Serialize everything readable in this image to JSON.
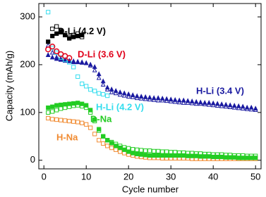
{
  "chart_data": {
    "type": "scatter",
    "xlabel": "Cycle number",
    "ylabel": "Capacity (mAh/g)",
    "xlim": [
      -1.2,
      51.3
    ],
    "ylim": [
      -18,
      328
    ],
    "xticks": [
      0,
      10,
      20,
      30,
      40,
      50
    ],
    "yticks": [
      0,
      100,
      200,
      300
    ],
    "series": [
      {
        "color": "#1a1aa0",
        "marker": "triangle",
        "filled": true,
        "x": [
          1,
          2,
          3,
          4,
          5,
          6,
          7,
          8,
          9,
          10,
          11,
          12,
          13,
          14,
          15,
          16,
          17,
          18,
          19,
          20,
          21,
          22,
          23,
          24,
          25,
          26,
          27,
          28,
          29,
          30,
          31,
          32,
          33,
          34,
          35,
          36,
          37,
          38,
          39,
          40,
          41,
          42,
          43,
          44,
          45,
          46,
          47,
          48,
          49,
          50
        ],
        "values": [
          220,
          215,
          212,
          210,
          208,
          207,
          205,
          205,
          204,
          203,
          200,
          195,
          180,
          165,
          152,
          148,
          145,
          142,
          140,
          138,
          136,
          134,
          133,
          132,
          131,
          130,
          130,
          129,
          128,
          127,
          126,
          125,
          125,
          124,
          123,
          122,
          121,
          120,
          120,
          119,
          118,
          117,
          116,
          115,
          114,
          113,
          112,
          110,
          110,
          108
        ]
      },
      {
        "color": "#1a1aa0",
        "marker": "triangle",
        "filled": false,
        "x": [
          1,
          2,
          3,
          4,
          5,
          6,
          7,
          8,
          9,
          10,
          11,
          12,
          13,
          14,
          15,
          16,
          17,
          18,
          19,
          20,
          21,
          22,
          23,
          24,
          25,
          26,
          27,
          28,
          29,
          30,
          31,
          32,
          33,
          34,
          35,
          36,
          37,
          38,
          39,
          40,
          41,
          42,
          43,
          44,
          45,
          46,
          47,
          48,
          49,
          50
        ],
        "values": [
          240,
          225,
          215,
          212,
          210,
          208,
          207,
          206,
          205,
          203,
          198,
          188,
          172,
          158,
          148,
          142,
          140,
          137,
          135,
          133,
          132,
          130,
          129,
          128,
          127,
          126,
          125,
          125,
          124,
          123,
          122,
          121,
          120,
          120,
          119,
          118,
          118,
          117,
          116,
          115,
          114,
          113,
          112,
          111,
          110,
          109,
          108,
          107,
          106,
          105
        ]
      },
      {
        "color": "#22cc22",
        "marker": "square",
        "filled": false,
        "x": [
          1,
          2,
          3,
          4,
          5,
          6,
          7,
          8,
          9,
          10,
          11,
          12,
          13,
          14,
          15,
          16,
          17,
          18,
          19,
          20,
          21,
          22,
          23,
          24,
          25,
          26,
          27,
          28,
          29,
          30,
          31,
          32,
          33,
          34,
          35,
          36,
          37,
          38,
          39,
          40,
          41,
          42,
          43,
          44,
          45,
          46,
          47,
          48,
          49,
          50
        ],
        "values": [
          100,
          102,
          105,
          108,
          110,
          112,
          114,
          115,
          113,
          110,
          100,
          82,
          62,
          50,
          42,
          38,
          34,
          30,
          27,
          25,
          23,
          22,
          21,
          20,
          20,
          19,
          19,
          18,
          18,
          17,
          17,
          16,
          16,
          15,
          15,
          14,
          14,
          13,
          13,
          12,
          12,
          12,
          11,
          11,
          10,
          10,
          10,
          9,
          9,
          9
        ]
      },
      {
        "color": "#f08a30",
        "marker": "square",
        "filled": false,
        "x": [
          1,
          2,
          3,
          4,
          5,
          6,
          7,
          8,
          9,
          10,
          11,
          12,
          13,
          14,
          15,
          16,
          17,
          18,
          19,
          20,
          21,
          22,
          23,
          24,
          25,
          26,
          27,
          28,
          29,
          30,
          31,
          32,
          33,
          34,
          35,
          36,
          37,
          38,
          39,
          40,
          41,
          42,
          43,
          44,
          45,
          46,
          47,
          48,
          49,
          50
        ],
        "values": [
          88,
          86,
          85,
          84,
          83,
          82,
          81,
          80,
          78,
          75,
          68,
          55,
          42,
          35,
          30,
          26,
          22,
          18,
          15,
          12,
          10,
          8,
          7,
          6,
          5,
          5,
          5,
          4,
          4,
          4,
          4,
          4,
          4,
          4,
          3,
          3,
          3,
          3,
          3,
          3,
          3,
          3,
          3,
          3,
          3,
          3,
          3,
          3,
          3,
          3
        ]
      },
      {
        "color": "#22cc22",
        "marker": "square",
        "filled": true,
        "x": [
          1,
          2,
          3,
          4,
          5,
          6,
          7,
          8,
          9,
          10,
          11,
          12,
          13,
          14,
          15,
          16,
          17,
          18,
          19,
          20,
          21,
          22,
          23,
          24,
          25,
          26,
          27,
          28,
          29,
          30,
          31,
          32,
          33,
          34,
          35,
          36,
          37,
          38,
          39,
          40,
          41,
          42,
          43,
          44,
          45,
          46,
          47,
          48,
          49,
          50
        ],
        "values": [
          110,
          112,
          115,
          116,
          117,
          118,
          119,
          120,
          118,
          115,
          105,
          85,
          65,
          50,
          42,
          36,
          30,
          26,
          22,
          18,
          15,
          13,
          12,
          11,
          10,
          10,
          10,
          10,
          10,
          10,
          10,
          10,
          10,
          9,
          9,
          9,
          8,
          8,
          8,
          7,
          7,
          7,
          6,
          6,
          6,
          5,
          5,
          5,
          5,
          5
        ]
      },
      {
        "color": "#33ddee",
        "marker": "square",
        "filled": false,
        "x": [
          1,
          2,
          3,
          4,
          5,
          6,
          7,
          8,
          9,
          10,
          11,
          12,
          13,
          14,
          15
        ],
        "values": [
          310,
          235,
          225,
          215,
          210,
          205,
          195,
          175,
          160,
          155,
          148,
          145,
          140,
          138,
          135
        ]
      },
      {
        "color": "#000000",
        "marker": "square",
        "filled": true,
        "x": [
          1,
          2,
          3,
          4,
          5,
          6,
          7,
          8,
          9
        ],
        "values": [
          248,
          260,
          265,
          270,
          262,
          255,
          258,
          260,
          262
        ]
      },
      {
        "color": "#000000",
        "marker": "square",
        "filled": false,
        "x": [
          2,
          3,
          4,
          5,
          6,
          7,
          8,
          9
        ],
        "values": [
          275,
          280,
          268,
          262,
          258,
          262,
          265,
          258
        ]
      },
      {
        "color": "#e0001a",
        "marker": "circle",
        "filled": false,
        "x": [
          1,
          2,
          3,
          4,
          5,
          6
        ],
        "values": [
          232,
          238,
          228,
          222,
          218,
          214
        ]
      }
    ],
    "annotations": [
      {
        "text": "D-Li (4.2 V)",
        "color": "#000000"
      },
      {
        "text": "D-Li (3.6 V)",
        "color": "#e0001a"
      },
      {
        "text": "H-Li (3.4 V)",
        "color": "#1a1aa0"
      },
      {
        "text": "H-Li (4.2 V)",
        "color": "#33ddee"
      },
      {
        "text": "D-Na",
        "color": "#22cc22"
      },
      {
        "text": "H-Na",
        "color": "#f08a30"
      }
    ]
  }
}
